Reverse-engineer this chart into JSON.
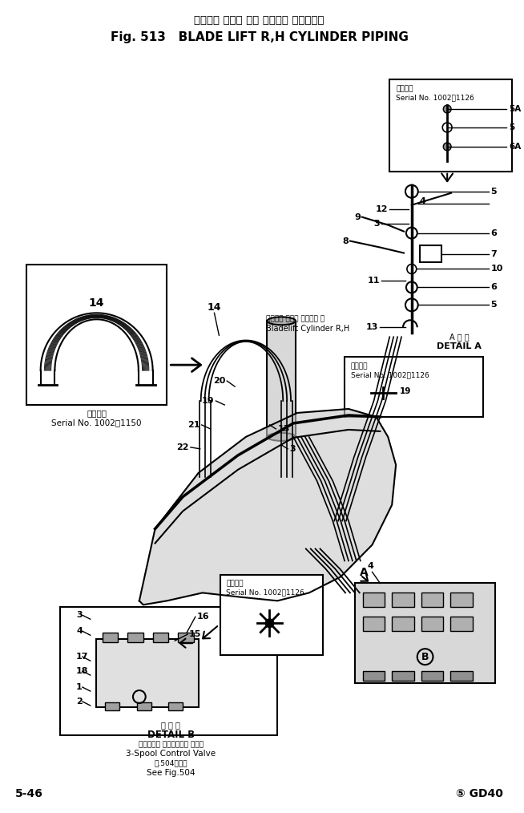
{
  "title_jp": "ブレード リフト 右側 シリンダ パイピング",
  "title_en": "Fig. 513   BLADE LIFT R,H CYLINDER PIPING",
  "footer_left": "5-46",
  "footer_right": "⑤ GD40",
  "bg_color": "#ffffff",
  "text_color": "#000000",
  "line_color": "#000000",
  "figsize": [
    6.54,
    10.14
  ],
  "dpi": 100
}
